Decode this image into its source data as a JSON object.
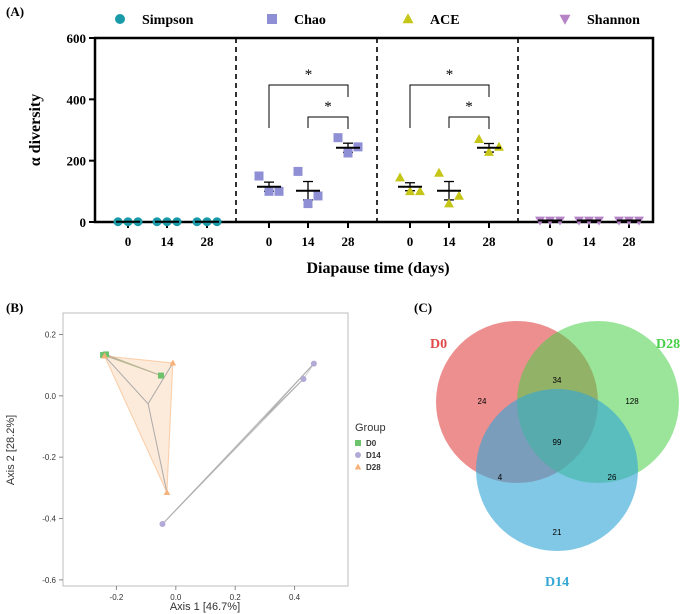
{
  "panels": {
    "a": {
      "tag": "(A)",
      "chart_data": {
        "type": "scatter",
        "ylabel": "α diversity",
        "xlabel": "Diapause time (days)",
        "ylim": [
          0,
          600
        ],
        "yticks": [
          "0",
          "200",
          "400",
          "600"
        ],
        "groups": [
          "0",
          "14",
          "28"
        ],
        "legend_position": "top",
        "series": [
          {
            "name": "Simpson",
            "marker": "circle",
            "color": "#1a9aa9",
            "points": {
              "0": [
                1,
                1,
                1
              ],
              "14": [
                1,
                1,
                1
              ],
              "28": [
                1,
                1,
                1
              ]
            },
            "means": [
              1,
              1,
              1
            ],
            "sem": [
              0,
              0,
              0
            ]
          },
          {
            "name": "Chao",
            "marker": "square",
            "color": "#8f8fd6",
            "points": {
              "0": [
                150,
                100,
                100
              ],
              "14": [
                165,
                60,
                85
              ],
              "28": [
                275,
                225,
                245
              ]
            },
            "means": [
              115,
              102,
              242
            ],
            "sem": [
              15,
              30,
              15
            ]
          },
          {
            "name": "ACE",
            "marker": "triangle-up",
            "color": "#c6c619",
            "points": {
              "0": [
                145,
                100,
                100
              ],
              "14": [
                160,
                60,
                85
              ],
              "28": [
                270,
                228,
                245
              ]
            },
            "means": [
              115,
              102,
              242
            ],
            "sem": [
              13,
              30,
              14
            ]
          },
          {
            "name": "Shannon",
            "marker": "triangle-down",
            "color": "#b583c6",
            "points": {
              "0": [
                5,
                5,
                5
              ],
              "14": [
                5,
                5,
                5
              ],
              "28": [
                5,
                5,
                5
              ]
            },
            "means": [
              5,
              5,
              5
            ],
            "sem": [
              0,
              0,
              0
            ]
          }
        ],
        "significance": [
          {
            "series": "Chao",
            "from": "0",
            "to": "28",
            "label": "*"
          },
          {
            "series": "Chao",
            "from": "14",
            "to": "28",
            "label": "*"
          },
          {
            "series": "ACE",
            "from": "0",
            "to": "28",
            "label": "*"
          },
          {
            "series": "ACE",
            "from": "14",
            "to": "28",
            "label": "*"
          }
        ]
      }
    },
    "b": {
      "tag": "(B)",
      "chart_data": {
        "type": "scatter",
        "xlabel": "Axis 1 [46.7%]",
        "ylabel": "Axis 2 [28.2%]",
        "xlim": [
          -0.38,
          0.58
        ],
        "ylim": [
          -0.62,
          0.27
        ],
        "xticks": [
          -0.2,
          0.0,
          0.2,
          0.4
        ],
        "xtick_labels": [
          "-0.2",
          "0.0",
          "0.2",
          "0.4"
        ],
        "yticks": [
          -0.6,
          -0.4,
          -0.2,
          0.0,
          0.2
        ],
        "ytick_labels": [
          "-0.6",
          "-0.4",
          "-0.2",
          "0.0",
          "0.2"
        ],
        "legend_title": "Group",
        "legend_position": "right",
        "groups": [
          {
            "name": "D0",
            "color": "#6cc36c",
            "marker": "square",
            "points": [
              [
                -0.245,
                0.133
              ],
              [
                -0.235,
                0.135
              ],
              [
                -0.05,
                0.066
              ]
            ]
          },
          {
            "name": "D14",
            "color": "#b3a9d6",
            "marker": "circle",
            "points": [
              [
                -0.045,
                -0.418
              ],
              [
                0.43,
                0.055
              ],
              [
                0.465,
                0.105
              ]
            ]
          },
          {
            "name": "D28",
            "color": "#f6b27a",
            "marker": "triangle",
            "points": [
              [
                -0.24,
                0.13
              ],
              [
                -0.01,
                0.107
              ],
              [
                -0.03,
                -0.315
              ]
            ]
          }
        ]
      }
    },
    "c": {
      "tag": "(C)",
      "chart_data": {
        "type": "venn",
        "sets": [
          {
            "name": "D0",
            "color": "#e24a4a"
          },
          {
            "name": "D28",
            "color": "#47d047"
          },
          {
            "name": "D14",
            "color": "#34a6d6"
          }
        ],
        "regions": {
          "D0_only": "24",
          "D28_only": "128",
          "D14_only": "21",
          "D0_D28": "34",
          "D0_D14": "4",
          "D28_D14": "26",
          "all": "99"
        }
      }
    }
  }
}
